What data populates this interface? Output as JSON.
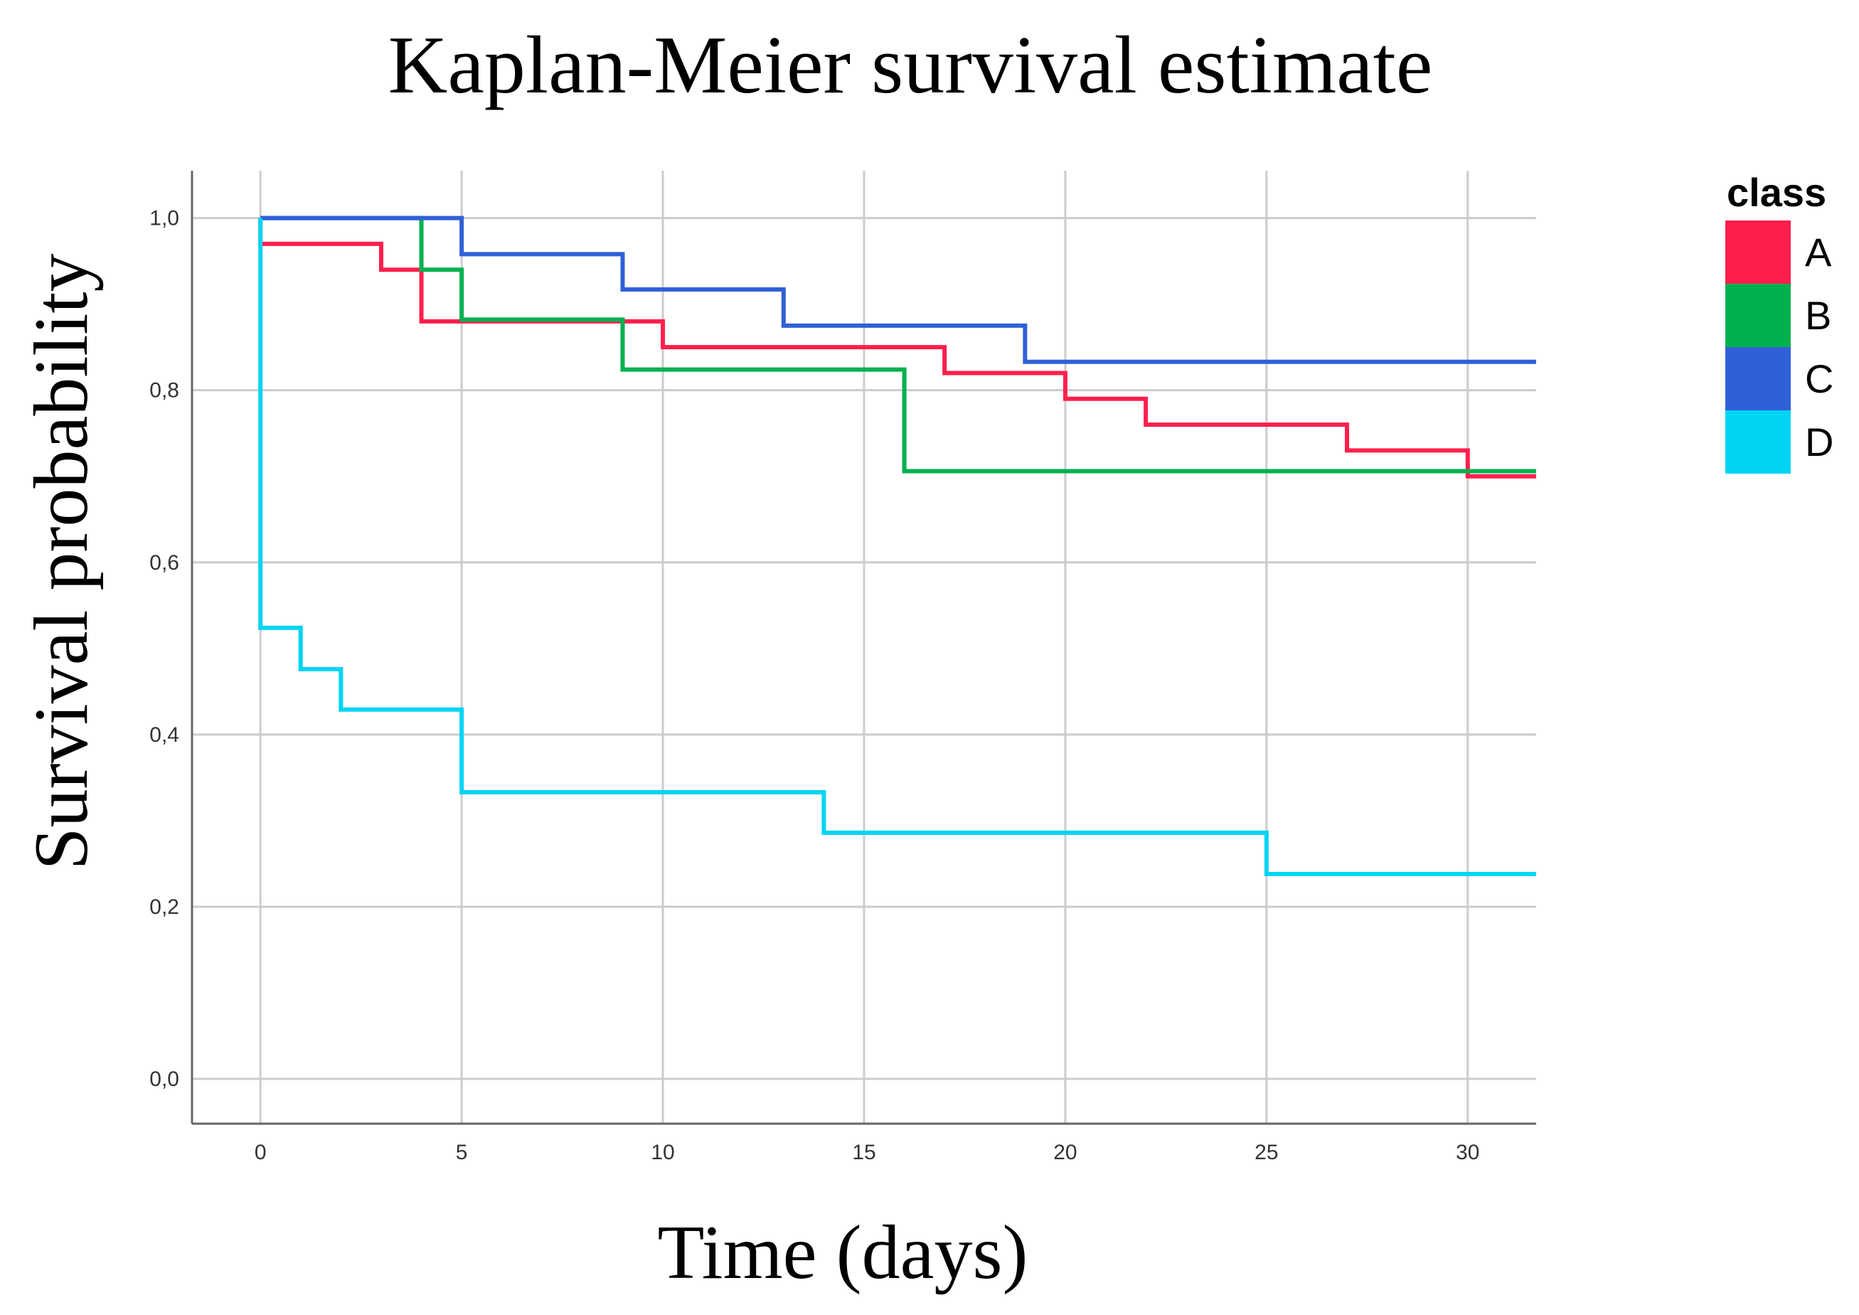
{
  "chart_data": {
    "type": "line",
    "subtype": "step",
    "title": "Kaplan-Meier survival estimate",
    "xlabel": "Time  (days)",
    "ylabel": "Survival probability",
    "xlim": [
      -1.7,
      31.7
    ],
    "ylim": [
      -0.052,
      1.055
    ],
    "x_ticks": [
      0,
      5,
      10,
      15,
      20,
      25,
      30
    ],
    "x_tick_labels": [
      "0",
      "5",
      "10",
      "15",
      "20",
      "25",
      "30"
    ],
    "y_ticks": [
      0.0,
      0.2,
      0.4,
      0.6,
      0.8,
      1.0
    ],
    "y_tick_labels": [
      "0,0",
      "0,2",
      "0,4",
      "0,6",
      "0,8",
      "1,0"
    ],
    "grid": true,
    "x_end": 31.7,
    "legend": {
      "title": "class",
      "position": "right"
    },
    "series": [
      {
        "name": "A",
        "color": "#ff1f4d",
        "points": [
          [
            0,
            1.0
          ],
          [
            0,
            0.97
          ],
          [
            3,
            0.94
          ],
          [
            4,
            0.88
          ],
          [
            10,
            0.85
          ],
          [
            17,
            0.82
          ],
          [
            20,
            0.79
          ],
          [
            22,
            0.76
          ],
          [
            27,
            0.73
          ],
          [
            30,
            0.7
          ]
        ]
      },
      {
        "name": "B",
        "color": "#00b04f",
        "points": [
          [
            0,
            1.0
          ],
          [
            4,
            0.94
          ],
          [
            5,
            0.882
          ],
          [
            9,
            0.824
          ],
          [
            16,
            0.706
          ]
        ]
      },
      {
        "name": "C",
        "color": "#3060d8",
        "points": [
          [
            0,
            1.0
          ],
          [
            5,
            0.958
          ],
          [
            9,
            0.917
          ],
          [
            13,
            0.875
          ],
          [
            19,
            0.833
          ]
        ]
      },
      {
        "name": "D",
        "color": "#00d4f4",
        "points": [
          [
            0,
            1.0
          ],
          [
            0,
            0.524
          ],
          [
            1,
            0.476
          ],
          [
            2,
            0.429
          ],
          [
            5,
            0.333
          ],
          [
            14,
            0.286
          ],
          [
            25,
            0.238
          ]
        ]
      }
    ]
  }
}
